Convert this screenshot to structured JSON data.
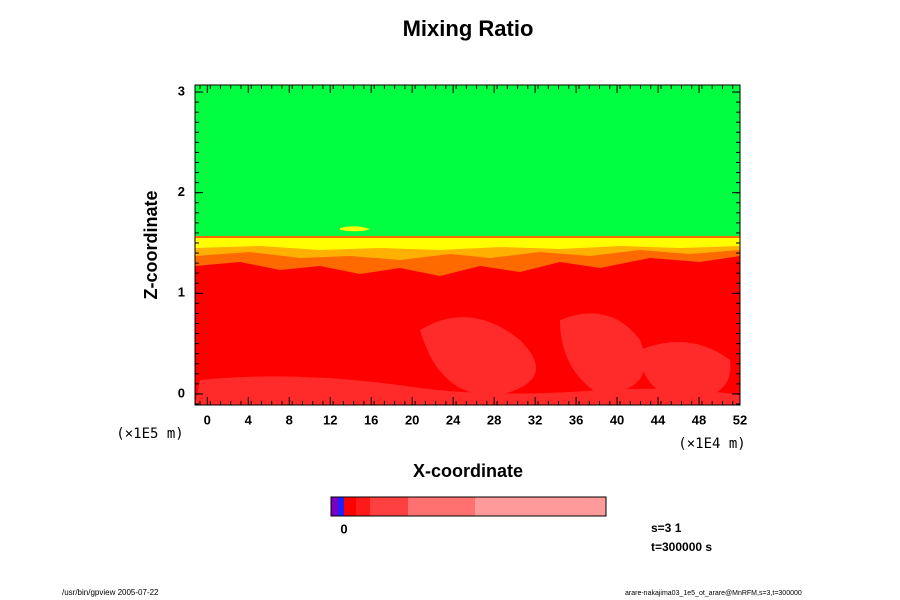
{
  "chart_data": {
    "type": "contour",
    "title": "Mixing Ratio",
    "x_label": "X-coordinate",
    "y_label": "Z-coordinate",
    "x_unit": "(×1E4 m)",
    "y_unit": "(×1E5 m)",
    "xlim": [
      -1.2,
      52
    ],
    "ylim": [
      -0.11,
      3.07
    ],
    "xticks": [
      0,
      4,
      8,
      12,
      16,
      20,
      24,
      28,
      32,
      36,
      40,
      44,
      48,
      52
    ],
    "yticks": [
      0,
      1,
      2,
      3
    ],
    "colorbar": {
      "colors": [
        "#7a00c8",
        "#2020ff",
        "#ff0000",
        "#ff1a1a",
        "#ff4040",
        "#ff7070",
        "#ff9a9a"
      ],
      "ticks": [
        0
      ]
    },
    "notes": [
      "s=3 1",
      "t=300000 s"
    ],
    "footer_left": "/usr/bin/gpview 2005-07-22",
    "footer_right": "arare-nakajima03_1e5_ot_arare@MnRFM,s=3,t=300000"
  }
}
